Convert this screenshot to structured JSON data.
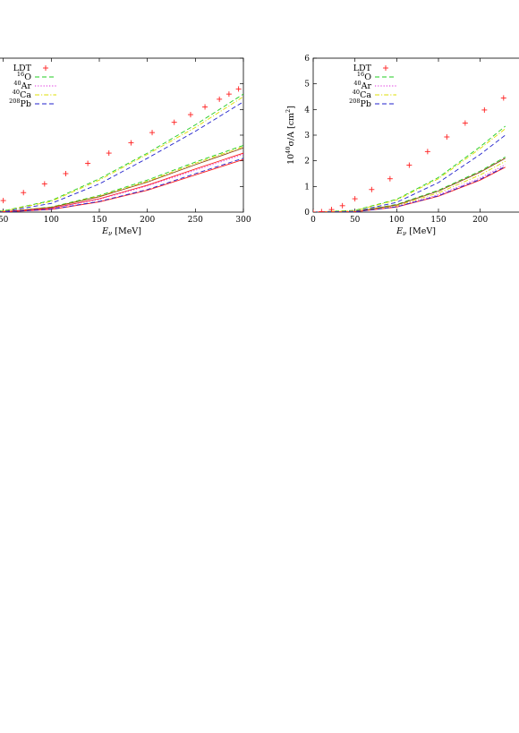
{
  "chart_data": [
    {
      "type": "line",
      "panel": "left",
      "xlabel_var": "E",
      "xlabel_sub": "ν",
      "xlabel_unit": " [MeV]",
      "ylabel": "",
      "xlim": [
        0,
        300
      ],
      "ylim": [
        0,
        6
      ],
      "x_ticks": [
        50,
        100,
        150,
        200,
        250,
        300
      ],
      "x_tick_labels": [
        "50",
        "100",
        "150",
        "200",
        "250",
        "300"
      ],
      "y_ticks": [
        1,
        2,
        3,
        4,
        5,
        6
      ],
      "grid": false,
      "legend_position": "top-left",
      "legend": [
        {
          "pre": "",
          "sup": "",
          "name": "LDT",
          "color": "#ff2020",
          "style": "plus"
        },
        {
          "pre": "",
          "sup": "16",
          "name": "O",
          "color": "#22cc22",
          "style": "dash"
        },
        {
          "pre": "",
          "sup": "40",
          "name": "Ar",
          "color": "#dd22dd",
          "style": "dot"
        },
        {
          "pre": "",
          "sup": "40",
          "name": "Ca",
          "color": "#dddd00",
          "style": "dashdot"
        },
        {
          "pre": "",
          "sup": "208",
          "name": "Pb",
          "color": "#2222cc",
          "style": "dash"
        }
      ],
      "ldt_points": {
        "x": [
          10,
          25,
          50,
          71,
          93,
          115,
          138,
          160,
          183,
          205,
          228,
          245,
          260,
          275,
          285,
          295
        ],
        "y": [
          0.05,
          0.18,
          0.45,
          0.76,
          1.1,
          1.5,
          1.9,
          2.3,
          2.7,
          3.1,
          3.5,
          3.8,
          4.1,
          4.4,
          4.6,
          4.8
        ]
      },
      "series": [
        {
          "color": "#22cc22",
          "style": "dash",
          "x": [
            0,
            50,
            100,
            150,
            200,
            250,
            300
          ],
          "y": [
            0,
            0.05,
            0.45,
            1.3,
            2.3,
            3.4,
            4.6
          ]
        },
        {
          "color": "#dddd00",
          "style": "dashdot",
          "x": [
            0,
            50,
            100,
            150,
            200,
            250,
            300
          ],
          "y": [
            0,
            0.04,
            0.42,
            1.25,
            2.25,
            3.3,
            4.5
          ]
        },
        {
          "color": "#2222cc",
          "style": "dash",
          "x": [
            0,
            50,
            100,
            150,
            200,
            250,
            300
          ],
          "y": [
            0,
            0.02,
            0.34,
            1.1,
            2.1,
            3.15,
            4.3
          ]
        },
        {
          "color": "#22cc22",
          "style": "dash",
          "x": [
            0,
            50,
            100,
            150,
            200,
            250,
            300
          ],
          "y": [
            0,
            0.01,
            0.2,
            0.65,
            1.25,
            1.95,
            2.6
          ]
        },
        {
          "color": "#dddd00",
          "style": "dashdot",
          "x": [
            0,
            50,
            100,
            150,
            200,
            250,
            300
          ],
          "y": [
            0,
            0.01,
            0.19,
            0.62,
            1.2,
            1.9,
            2.55
          ]
        },
        {
          "color": "#8b4513",
          "style": "solid",
          "x": [
            0,
            50,
            100,
            150,
            200,
            250,
            300
          ],
          "y": [
            0,
            0.01,
            0.18,
            0.6,
            1.17,
            1.85,
            2.5
          ]
        },
        {
          "color": "#ff2020",
          "style": "solid",
          "x": [
            0,
            50,
            100,
            150,
            200,
            250,
            300
          ],
          "y": [
            0,
            0.01,
            0.15,
            0.52,
            1.05,
            1.68,
            2.3
          ]
        },
        {
          "color": "#dd22dd",
          "style": "dot",
          "x": [
            0,
            50,
            100,
            150,
            200,
            250,
            300
          ],
          "y": [
            0,
            0.01,
            0.14,
            0.5,
            1.02,
            1.63,
            2.25
          ]
        },
        {
          "color": "#ff2020",
          "style": "solid",
          "x": [
            0,
            50,
            100,
            150,
            200,
            250,
            300
          ],
          "y": [
            0,
            0.005,
            0.1,
            0.4,
            0.85,
            1.45,
            2.05
          ]
        },
        {
          "color": "#2222cc",
          "style": "dash",
          "x": [
            0,
            50,
            100,
            150,
            200,
            250,
            300
          ],
          "y": [
            0,
            0.005,
            0.11,
            0.42,
            0.88,
            1.5,
            2.1
          ]
        }
      ]
    },
    {
      "type": "line",
      "panel": "right",
      "xlabel_var": "E",
      "xlabel_sub": "ν",
      "xlabel_unit": " [MeV]",
      "ylabel_pre": "10",
      "ylabel_sup": "40",
      "ylabel_mid": "σ/A [cm",
      "ylabel_sup2": "2",
      "ylabel_post": "]",
      "xlim": [
        0,
        300
      ],
      "ylim": [
        0,
        6
      ],
      "x_ticks": [
        0,
        50,
        100,
        150,
        200
      ],
      "x_tick_labels": [
        "0",
        "50",
        "100",
        "150",
        "200"
      ],
      "y_ticks": [
        0,
        1,
        2,
        3,
        4,
        5,
        6
      ],
      "y_tick_labels": [
        "0",
        "1",
        "2",
        "3",
        "4",
        "5",
        "6"
      ],
      "grid": false,
      "legend_position": "top-left",
      "legend": [
        {
          "sup": "",
          "name": "LDT",
          "color": "#ff2020",
          "style": "plus"
        },
        {
          "sup": "16",
          "name": "O",
          "color": "#22cc22",
          "style": "dash"
        },
        {
          "sup": "40",
          "name": "Ar",
          "color": "#dd22dd",
          "style": "dot"
        },
        {
          "sup": "40",
          "name": "Ca",
          "color": "#dddd00",
          "style": "dashdot"
        },
        {
          "sup": "208",
          "name": "Pb",
          "color": "#2222cc",
          "style": "dash"
        }
      ],
      "ldt_points": {
        "x": [
          0,
          10,
          22,
          35,
          50,
          70,
          92,
          115,
          137,
          160,
          182,
          205,
          228
        ],
        "y": [
          0,
          0.02,
          0.1,
          0.25,
          0.52,
          0.88,
          1.3,
          1.83,
          2.36,
          2.93,
          3.47,
          3.98,
          4.45
        ]
      },
      "series": [
        {
          "color": "#22cc22",
          "style": "dash",
          "x": [
            0,
            50,
            100,
            150,
            200,
            230
          ],
          "y": [
            0,
            0.07,
            0.5,
            1.35,
            2.55,
            3.35
          ]
        },
        {
          "color": "#dddd00",
          "style": "dashdot",
          "x": [
            0,
            50,
            100,
            150,
            200,
            230
          ],
          "y": [
            0,
            0.06,
            0.47,
            1.3,
            2.48,
            3.25
          ]
        },
        {
          "color": "#2222cc",
          "style": "dash",
          "x": [
            0,
            50,
            100,
            150,
            200,
            230
          ],
          "y": [
            0,
            0.03,
            0.38,
            1.15,
            2.25,
            3.0
          ]
        },
        {
          "color": "#22cc22",
          "style": "dash",
          "x": [
            0,
            50,
            100,
            150,
            200,
            230
          ],
          "y": [
            0,
            0.02,
            0.3,
            0.85,
            1.6,
            2.15
          ]
        },
        {
          "color": "#8b4513",
          "style": "solid",
          "x": [
            0,
            50,
            100,
            150,
            200,
            230
          ],
          "y": [
            0,
            0.02,
            0.28,
            0.82,
            1.56,
            2.1
          ]
        },
        {
          "color": "#dddd00",
          "style": "dashdot",
          "x": [
            0,
            50,
            100,
            150,
            200,
            230
          ],
          "y": [
            0,
            0.015,
            0.25,
            0.75,
            1.45,
            1.98
          ]
        },
        {
          "color": "#dd22dd",
          "style": "dot",
          "x": [
            0,
            50,
            100,
            150,
            200,
            230
          ],
          "y": [
            0,
            0.01,
            0.22,
            0.68,
            1.33,
            1.85
          ]
        },
        {
          "color": "#ff2020",
          "style": "solid",
          "x": [
            0,
            50,
            100,
            150,
            200,
            230
          ],
          "y": [
            0,
            0.01,
            0.2,
            0.62,
            1.25,
            1.75
          ]
        },
        {
          "color": "#2222cc",
          "style": "dash",
          "x": [
            0,
            50,
            100,
            150,
            200,
            230
          ],
          "y": [
            0,
            0.01,
            0.21,
            0.64,
            1.28,
            1.78
          ]
        }
      ]
    }
  ]
}
